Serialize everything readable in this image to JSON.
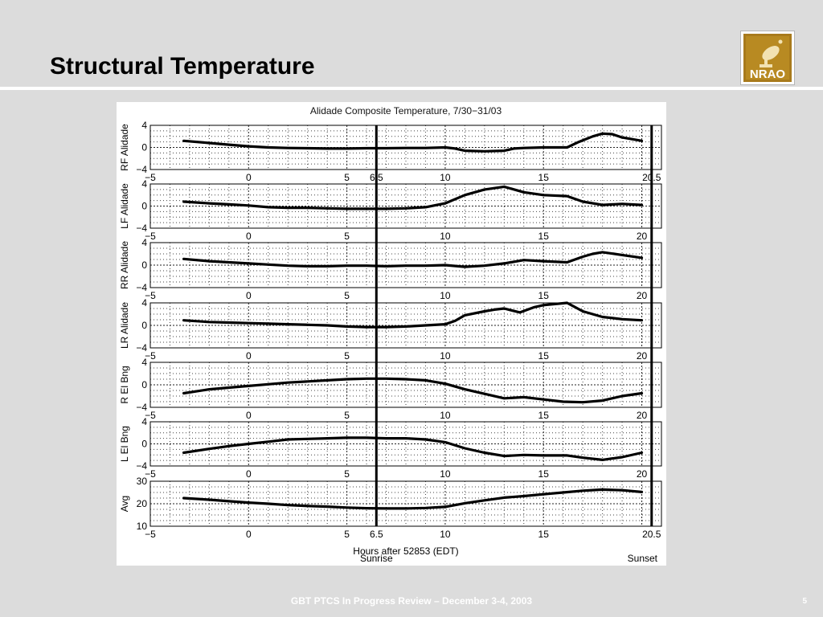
{
  "slide": {
    "title": "Structural Temperature",
    "logo_text": "NRAO",
    "footer": "GBT PTCS In Progress  Review – December 3-4, 2003",
    "page_number": "5"
  },
  "chart_data": {
    "type": "line",
    "title": "Alidade Composite Temperature, 7/30−31/03",
    "xlabel": "Hours after 52853 (EDT)",
    "xlim": [
      -5,
      21
    ],
    "xticks": [
      -5,
      0,
      5,
      10,
      15,
      20
    ],
    "grid": true,
    "annotations": [
      {
        "x": 6.5,
        "label": "Sunrise",
        "tick_label": "6.5"
      },
      {
        "x": 20.5,
        "label": "Sunset",
        "tick_label": "20.5"
      }
    ],
    "panels": [
      {
        "ylabel": "RF Alidade",
        "ylim": [
          -4,
          4
        ],
        "yticks": [
          -4,
          0,
          4
        ],
        "x_ticklabels": [
          "−5",
          "0",
          "5",
          "6.5",
          "10",
          "15",
          "20.5"
        ],
        "x": [
          -3.3,
          -2,
          -1,
          0,
          1,
          2,
          3,
          4,
          5,
          6,
          7,
          8,
          9,
          10,
          10.5,
          11,
          12,
          13,
          13.5,
          14,
          15,
          16.2,
          16.8,
          17.5,
          18,
          18.5,
          19,
          20
        ],
        "y": [
          1.2,
          0.8,
          0.5,
          0.2,
          0.0,
          -0.1,
          -0.15,
          -0.2,
          -0.2,
          -0.15,
          -0.15,
          -0.1,
          -0.1,
          0.0,
          -0.2,
          -0.6,
          -0.7,
          -0.6,
          -0.2,
          -0.1,
          0.0,
          0.0,
          1.0,
          2.0,
          2.5,
          2.4,
          1.8,
          1.2
        ]
      },
      {
        "ylabel": "LF Alidade",
        "ylim": [
          -4,
          4
        ],
        "yticks": [
          -4,
          0,
          4
        ],
        "x_ticklabels": [
          "−5",
          "0",
          "5",
          "10",
          "15",
          "20"
        ],
        "x": [
          -3.3,
          -2,
          -1,
          0,
          1,
          2,
          3,
          4,
          5,
          6,
          7,
          8,
          9,
          10,
          11,
          12,
          13,
          14,
          15,
          16.2,
          17,
          18,
          19,
          20
        ],
        "y": [
          0.8,
          0.5,
          0.3,
          0.1,
          -0.2,
          -0.3,
          -0.3,
          -0.4,
          -0.5,
          -0.5,
          -0.5,
          -0.4,
          -0.2,
          0.5,
          2.0,
          3.0,
          3.5,
          2.5,
          2.0,
          1.8,
          0.8,
          0.2,
          0.4,
          0.2
        ]
      },
      {
        "ylabel": "RR Alidade",
        "ylim": [
          -4,
          4
        ],
        "yticks": [
          -4,
          0,
          4
        ],
        "x_ticklabels": [
          "−5",
          "0",
          "5",
          "10",
          "15",
          "20"
        ],
        "x": [
          -3.3,
          -2,
          -1,
          0,
          1,
          2,
          3,
          4,
          5,
          6,
          7,
          8,
          9,
          10,
          11,
          12,
          13,
          14,
          15,
          16.2,
          17,
          17.5,
          18,
          19,
          20
        ],
        "y": [
          1.1,
          0.7,
          0.5,
          0.3,
          0.1,
          -0.1,
          -0.2,
          -0.2,
          -0.1,
          -0.1,
          -0.2,
          -0.1,
          -0.1,
          0.0,
          -0.3,
          -0.1,
          0.3,
          0.9,
          0.7,
          0.5,
          1.5,
          2.0,
          2.3,
          1.8,
          1.3
        ]
      },
      {
        "ylabel": "LR Alidade",
        "ylim": [
          -4,
          4
        ],
        "yticks": [
          -4,
          0,
          4
        ],
        "x_ticklabels": [
          "−5",
          "0",
          "5",
          "10",
          "15",
          "20"
        ],
        "x": [
          -3.3,
          -2,
          -1,
          0,
          1,
          2,
          3,
          4,
          5,
          6,
          7,
          8,
          9,
          10,
          10.5,
          11,
          12,
          12.5,
          13,
          13.8,
          14.5,
          15,
          16.2,
          17,
          18,
          19,
          20
        ],
        "y": [
          0.9,
          0.6,
          0.5,
          0.4,
          0.3,
          0.2,
          0.1,
          0.0,
          -0.2,
          -0.3,
          -0.3,
          -0.2,
          0.0,
          0.2,
          0.8,
          1.8,
          2.5,
          2.8,
          3.0,
          2.3,
          3.2,
          3.6,
          4.0,
          2.5,
          1.5,
          1.1,
          0.9
        ]
      },
      {
        "ylabel": "R El Bng",
        "ylim": [
          -4,
          4
        ],
        "yticks": [
          -4,
          0,
          4
        ],
        "x_ticklabels": [
          "−5",
          "0",
          "5",
          "10",
          "15",
          "20"
        ],
        "x": [
          -3.3,
          -2,
          -1,
          0,
          1,
          2,
          3,
          4,
          5,
          6,
          7,
          8,
          9,
          10,
          11,
          12,
          13,
          14,
          15,
          16,
          17,
          18,
          19,
          20
        ],
        "y": [
          -1.5,
          -0.8,
          -0.5,
          -0.2,
          0.1,
          0.4,
          0.6,
          0.8,
          1.0,
          1.1,
          1.1,
          1.0,
          0.8,
          0.2,
          -0.8,
          -1.6,
          -2.4,
          -2.2,
          -2.6,
          -3.0,
          -3.1,
          -2.8,
          -2.0,
          -1.5
        ]
      },
      {
        "ylabel": "L El Bng",
        "ylim": [
          -4,
          4
        ],
        "yticks": [
          -4,
          0,
          4
        ],
        "x_ticklabels": [
          "−5",
          "0",
          "5",
          "10",
          "15",
          "20"
        ],
        "x": [
          -3.3,
          -2,
          -1,
          0,
          1,
          2,
          3,
          4,
          5,
          6,
          7,
          8,
          9,
          10,
          11,
          12,
          13,
          14,
          15,
          16.2,
          17,
          18,
          19,
          20
        ],
        "y": [
          -1.6,
          -0.9,
          -0.4,
          0.0,
          0.4,
          0.8,
          0.9,
          1.0,
          1.1,
          1.1,
          1.0,
          1.0,
          0.8,
          0.3,
          -0.8,
          -1.6,
          -2.2,
          -2.0,
          -2.1,
          -2.1,
          -2.5,
          -2.9,
          -2.4,
          -1.6
        ]
      },
      {
        "ylabel": "Avg",
        "ylim": [
          10,
          30
        ],
        "yticks": [
          10,
          20,
          30
        ],
        "x_ticklabels": [
          "−5",
          "0",
          "5",
          "6.5",
          "10",
          "15",
          "20.5"
        ],
        "x": [
          -3.3,
          -2,
          -1,
          0,
          1,
          2,
          3,
          4,
          5,
          6,
          7,
          8,
          9,
          10,
          11,
          12,
          13,
          14,
          15,
          16,
          17,
          18,
          19,
          20
        ],
        "y": [
          22.5,
          21.8,
          21.1,
          20.5,
          20.0,
          19.4,
          19.0,
          18.7,
          18.3,
          18.0,
          17.9,
          17.9,
          18.1,
          18.6,
          20.2,
          21.5,
          22.7,
          23.4,
          24.2,
          25.0,
          25.8,
          26.3,
          26.0,
          25.2
        ]
      }
    ]
  }
}
